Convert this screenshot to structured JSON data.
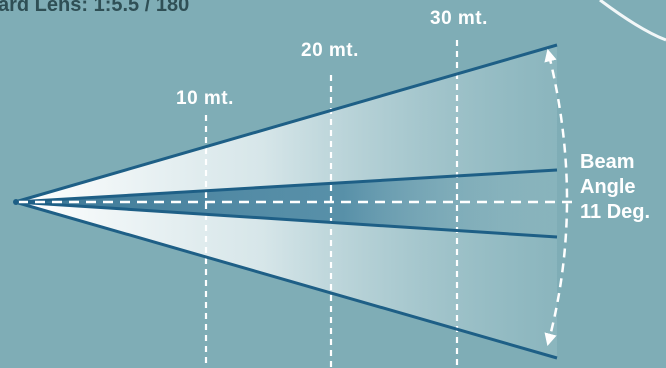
{
  "header": {
    "lens_text": "ard Lens: 1:5.5 / 180"
  },
  "distances": [
    {
      "label": "10 mt."
    },
    {
      "label": "20 mt."
    },
    {
      "label": "30 mt."
    }
  ],
  "beam_angle": {
    "line1": "Beam",
    "line2": "Angle",
    "line3": "11 Deg."
  },
  "colors": {
    "background": "#7fadb6",
    "beam_line": "#1e5f86",
    "inner_beam": "#2f6f90",
    "guide_lines": "#ffffff",
    "header_text": "#2f4f55"
  }
}
